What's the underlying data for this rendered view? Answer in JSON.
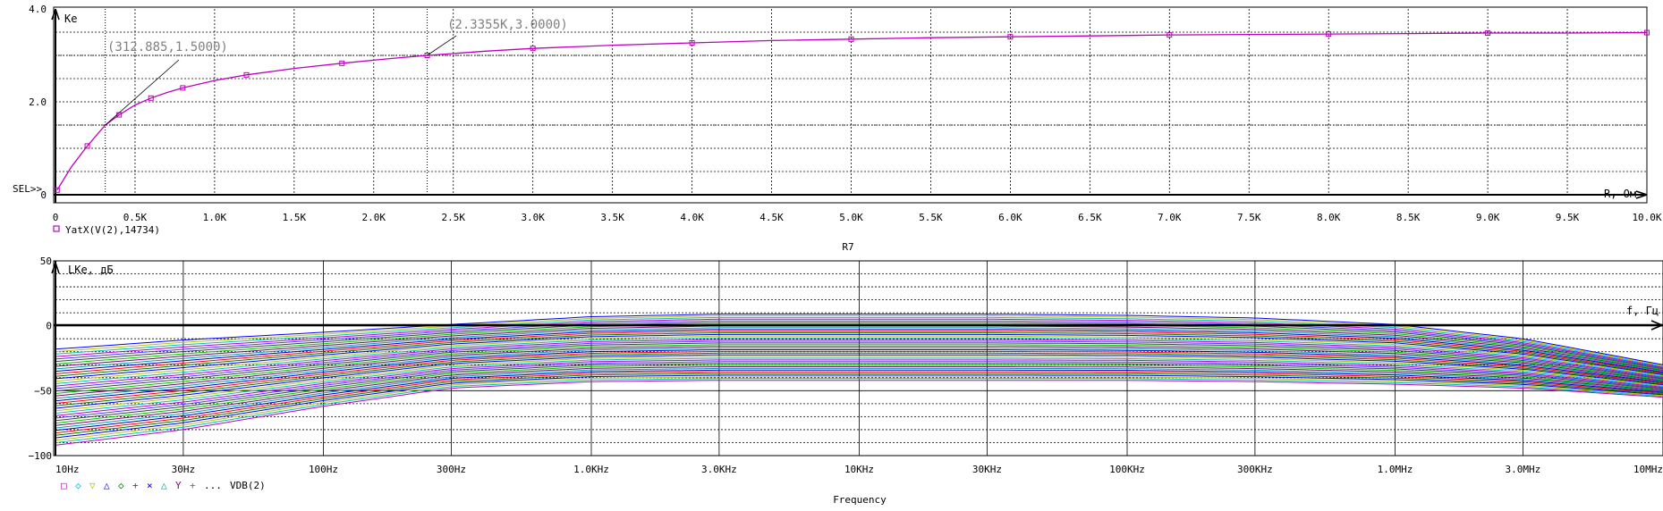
{
  "chart_data": [
    {
      "type": "line",
      "ylabel": "Ke",
      "xlabel": "R, Ом",
      "xaxis_title": "R7",
      "sel_marker": "SEL>>",
      "xlim": [
        0,
        10000
      ],
      "ylim": [
        0,
        4
      ],
      "grid": true,
      "x_ticks": [
        0,
        500,
        1000,
        1500,
        2000,
        2500,
        3000,
        3500,
        4000,
        4500,
        5000,
        5500,
        6000,
        6500,
        7000,
        7500,
        8000,
        8500,
        9000,
        9500,
        10000
      ],
      "x_tick_labels": [
        "0",
        "0.5K",
        "1.0K",
        "1.5K",
        "2.0K",
        "2.5K",
        "3.0K",
        "3.5K",
        "4.0K",
        "4.5K",
        "5.0K",
        "5.5K",
        "6.0K",
        "6.5K",
        "7.0K",
        "7.5K",
        "8.0K",
        "8.5K",
        "9.0K",
        "9.5K",
        "10.0K"
      ],
      "y_ticks": [
        0,
        2,
        4
      ],
      "y_tick_labels": [
        "0",
        "2.0",
        "4.0"
      ],
      "series": [
        {
          "name": "YatX(V(2),14734)",
          "color": "#c000c0",
          "x": [
            10,
            100,
            200,
            313,
            400,
            500,
            600,
            700,
            800,
            1000,
            1200,
            1500,
            1800,
            2100,
            2336,
            2700,
            3000,
            3500,
            4000,
            4500,
            5000,
            5500,
            6000,
            6500,
            7000,
            7500,
            8000,
            8500,
            9000,
            9500,
            10000
          ],
          "y": [
            0.1,
            0.6,
            1.05,
            1.5,
            1.72,
            1.93,
            2.08,
            2.2,
            2.3,
            2.46,
            2.58,
            2.72,
            2.83,
            2.93,
            3.0,
            3.09,
            3.15,
            3.22,
            3.27,
            3.32,
            3.35,
            3.38,
            3.4,
            3.42,
            3.44,
            3.45,
            3.46,
            3.47,
            3.48,
            3.48,
            3.49
          ]
        }
      ],
      "annotations": [
        {
          "text": "(312.885,1.5000)",
          "x": 312.885,
          "y": 1.5
        },
        {
          "text": "(2.3355K,3.0000)",
          "x": 2335.5,
          "y": 3.0
        }
      ]
    },
    {
      "type": "line",
      "ylabel": "LKe, дБ",
      "xlabel": "f, Гц",
      "xaxis_title": "Frequency",
      "scale_x": "log",
      "xlim": [
        10,
        10000000
      ],
      "ylim": [
        -100,
        50
      ],
      "grid": true,
      "x_ticks": [
        10,
        30,
        100,
        300,
        1000,
        3000,
        10000,
        30000,
        100000,
        300000,
        1000000,
        3000000,
        10000000
      ],
      "x_tick_labels": [
        "10Hz",
        "30Hz",
        "100Hz",
        "300Hz",
        "1.0KHz",
        "3.0KHz",
        "10KHz",
        "30KHz",
        "100KHz",
        "300KHz",
        "1.0MHz",
        "3.0MHz",
        "10MHz"
      ],
      "y_ticks": [
        -100,
        -50,
        0,
        50
      ],
      "y_tick_labels": [
        "−100",
        "−50",
        "0",
        "50"
      ],
      "legend_text": "VDB(2)",
      "legend_ellipsis": "...",
      "legend_symbols": [
        "□",
        "◇",
        "▽",
        "△",
        "◇",
        "+",
        "×",
        "△",
        "Y",
        "+"
      ],
      "series_count": 40,
      "series_colors": [
        "#c000c0",
        "#00c0c0",
        "#c0c000",
        "#0000ff",
        "#008000",
        "#ff0000",
        "#0000c0",
        "#00a0a0",
        "#800080",
        "#00c000",
        "#404040",
        "#4040ff"
      ],
      "envelope": {
        "x_freq": [
          10,
          30,
          100,
          300,
          1000,
          3000,
          10000,
          30000,
          100000,
          300000,
          1000000,
          3000000,
          10000000
        ],
        "top_db": [
          -18,
          -11,
          -5,
          1,
          7,
          9,
          9,
          9,
          8,
          6,
          1,
          -10,
          -30
        ],
        "bottom_db": [
          -92,
          -80,
          -62,
          -48,
          -43,
          -42,
          -42,
          -42,
          -42,
          -43,
          -45,
          -48,
          -55
        ]
      }
    }
  ]
}
